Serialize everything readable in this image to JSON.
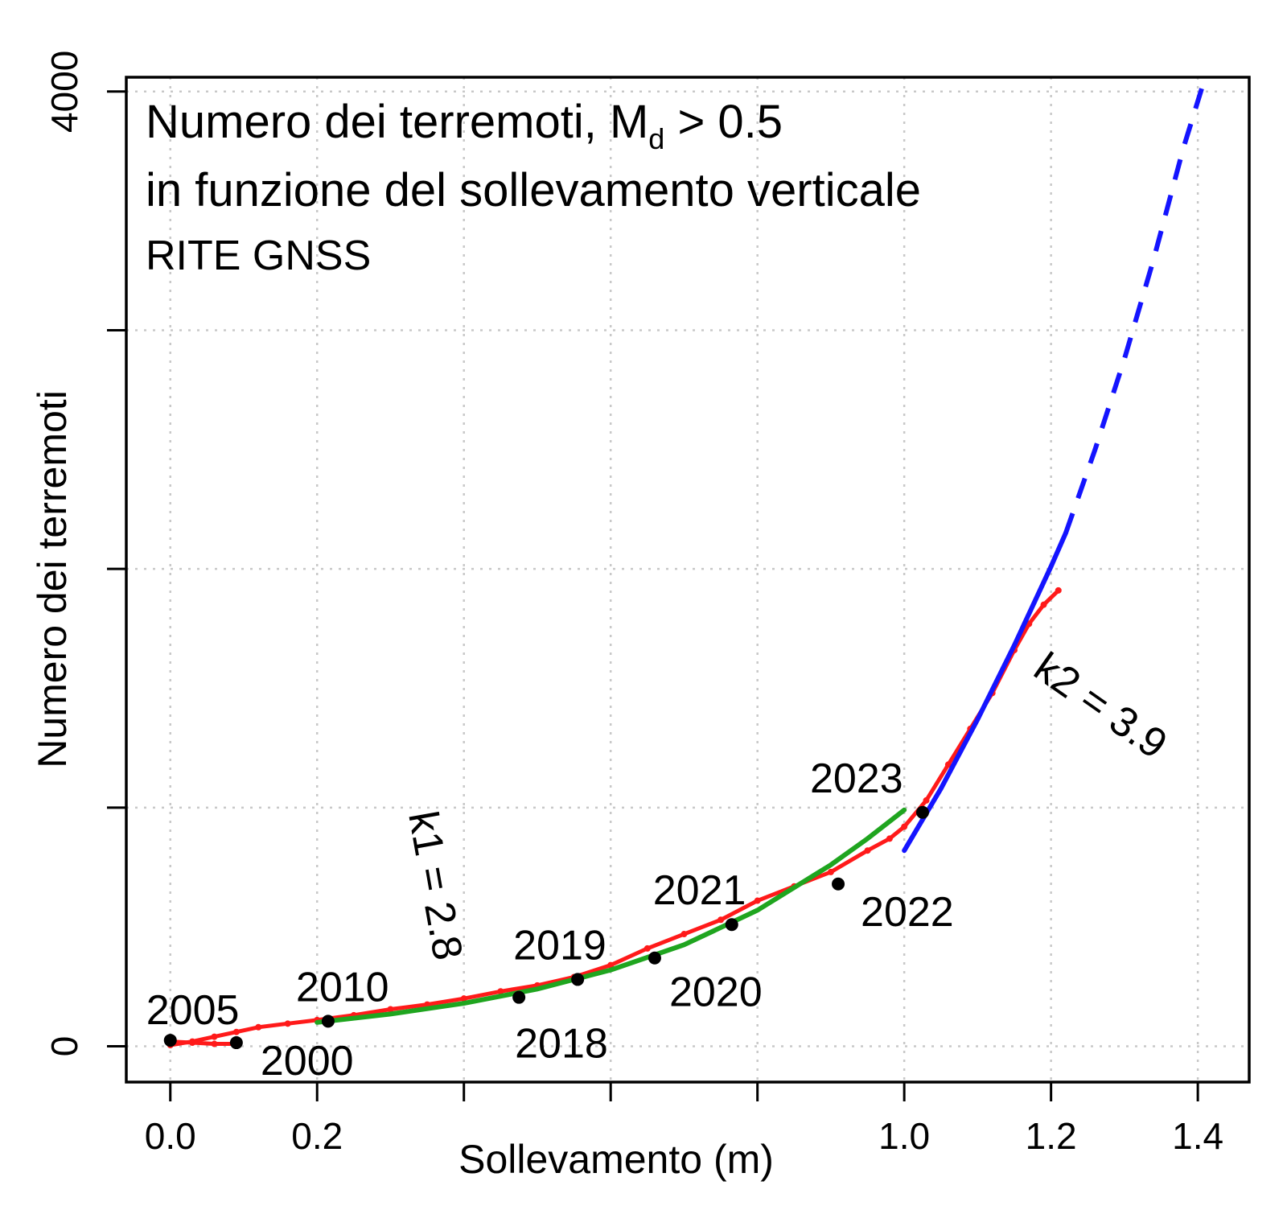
{
  "chart_data": {
    "type": "scatter",
    "title_main": "Numero dei terremoti, M",
    "title_main_sub": "d",
    "title_main_suffix": " > 0.5",
    "title_line2": "in funzione del sollevamento verticale",
    "title_line3": "RITE GNSS",
    "xlabel": "Sollevamento (m)",
    "ylabel": "Numero dei terremoti",
    "xlim": [
      -0.06,
      1.47
    ],
    "ylim": [
      -150,
      4060
    ],
    "x_ticks": [
      0.0,
      0.2,
      0.4,
      0.6,
      0.8,
      1.0,
      1.2,
      1.4
    ],
    "x_tick_labels": [
      "0.0",
      "0.2",
      "",
      "",
      "",
      "1.0",
      "1.2",
      "1.4"
    ],
    "y_ticks": [
      0,
      1000,
      2000,
      3000,
      4000
    ],
    "y_tick_labels": [
      "0",
      "",
      "",
      "",
      "4000"
    ],
    "grid": true,
    "colors": {
      "observed": "#ff1a1a",
      "fit_k1": "#1fa51f",
      "fit_k2": "#1414ff",
      "year_marker": "#000000"
    },
    "series": [
      {
        "style": "points",
        "color": "#ff1a1a",
        "x": [
          0.0,
          0.03,
          0.06,
          0.09,
          0.12,
          0.16,
          0.2,
          0.25,
          0.3,
          0.35,
          0.4,
          0.45,
          0.5,
          0.55,
          0.6,
          0.65,
          0.7,
          0.75,
          0.8,
          0.85,
          0.9,
          0.95,
          0.98,
          1.0,
          1.03,
          1.06,
          1.09,
          1.12,
          1.15,
          1.17,
          1.19,
          1.21
        ],
        "y": [
          5,
          20,
          40,
          60,
          80,
          95,
          110,
          130,
          155,
          175,
          200,
          230,
          255,
          290,
          340,
          410,
          470,
          530,
          610,
          670,
          730,
          820,
          870,
          920,
          1030,
          1180,
          1330,
          1480,
          1660,
          1770,
          1850,
          1910
        ]
      },
      {
        "style": "points",
        "color": "#ff1a1a",
        "x": [
          0.0,
          0.03,
          0.06,
          0.09
        ],
        "y": [
          20,
          15,
          10,
          10
        ]
      },
      {
        "name": "k1 = 2.8",
        "style": "line",
        "color": "#1fa51f",
        "x": [
          0.2,
          0.3,
          0.4,
          0.5,
          0.6,
          0.7,
          0.8,
          0.9,
          0.95,
          1.0
        ],
        "y": [
          100,
          135,
          180,
          240,
          320,
          425,
          570,
          760,
          870,
          990
        ]
      },
      {
        "name": "k2 = 3.9",
        "style": "line",
        "color": "#1414ff",
        "x": [
          1.0,
          1.05,
          1.1,
          1.15,
          1.2,
          1.22
        ],
        "y": [
          820,
          1080,
          1370,
          1680,
          2010,
          2150
        ]
      },
      {
        "name": "k2 = 3.9",
        "style": "dashed",
        "color": "#1414ff",
        "x": [
          1.22,
          1.26,
          1.3,
          1.34,
          1.38,
          1.41
        ],
        "y": [
          2150,
          2500,
          2880,
          3300,
          3760,
          4060
        ]
      }
    ],
    "year_points": [
      {
        "label": "2000",
        "x": 0.09,
        "y": 15
      },
      {
        "label": "2005",
        "x": 0.0,
        "y": 25
      },
      {
        "label": "2010",
        "x": 0.215,
        "y": 105
      },
      {
        "label": "2018",
        "x": 0.475,
        "y": 205
      },
      {
        "label": "2019",
        "x": 0.555,
        "y": 280
      },
      {
        "label": "2020",
        "x": 0.66,
        "y": 370
      },
      {
        "label": "2021",
        "x": 0.765,
        "y": 510
      },
      {
        "label": "2022",
        "x": 0.91,
        "y": 680
      },
      {
        "label": "2023",
        "x": 1.025,
        "y": 980
      }
    ],
    "annotations": [
      {
        "text": "k1 = 2.8",
        "x": 0.35,
        "y": 600
      },
      {
        "text": "k2 = 3.9",
        "x": 1.29,
        "y": 1540
      }
    ]
  }
}
